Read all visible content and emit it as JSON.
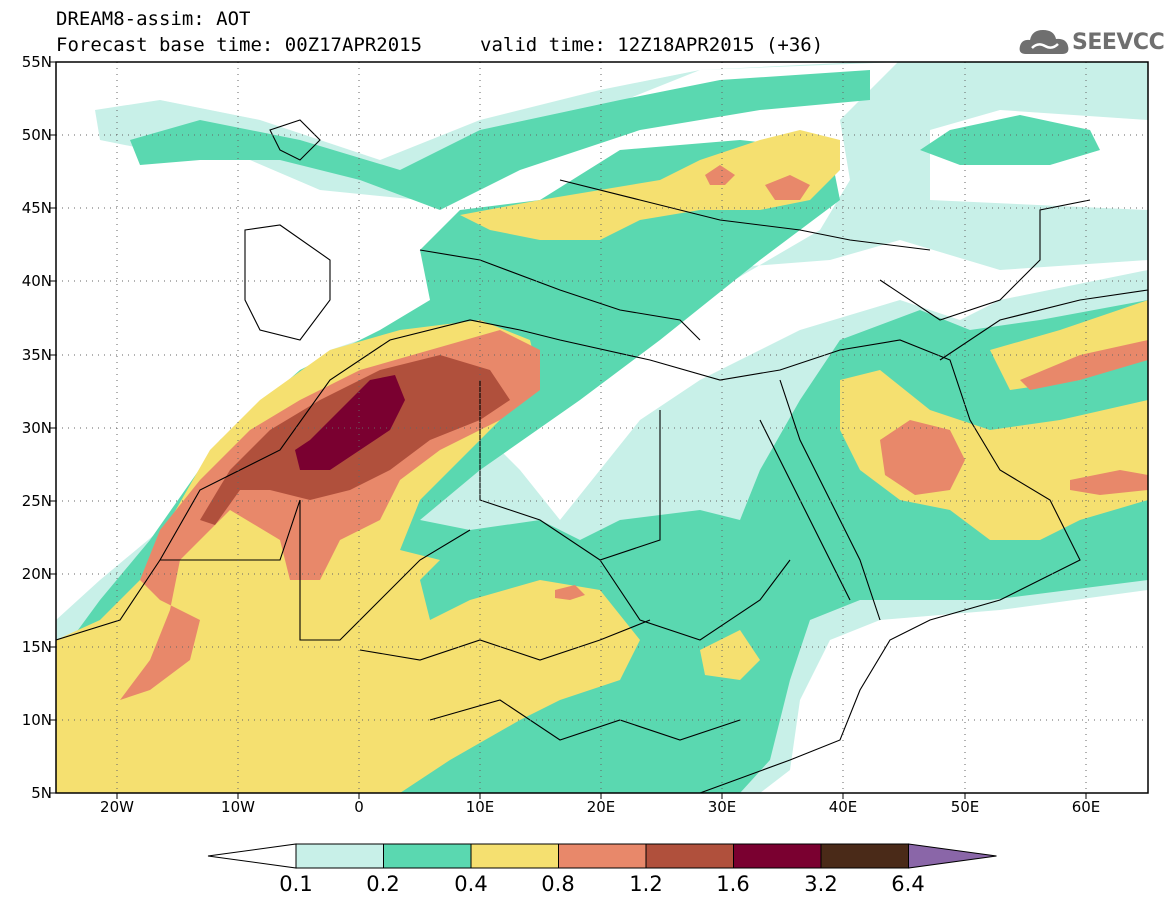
{
  "title": {
    "line1": "DREAM8-assim: AOT",
    "line2": "Forecast base time: 00Z17APR2015",
    "valid": "valid time: 12Z18APR2015 (+36)"
  },
  "logo": {
    "text": "SEEVCCC",
    "icon": "cloud-icon"
  },
  "axes": {
    "lat_labels": [
      "55N",
      "50N",
      "45N",
      "40N",
      "35N",
      "30N",
      "25N",
      "20N",
      "15N",
      "10N",
      "5N"
    ],
    "lon_labels": [
      "20W",
      "10W",
      "0",
      "10E",
      "20E",
      "30E",
      "40E",
      "50E",
      "60E"
    ]
  },
  "colorbar": {
    "labels": [
      "0.1",
      "0.2",
      "0.4",
      "0.8",
      "1.2",
      "1.6",
      "3.2",
      "6.4"
    ],
    "colors": [
      "#ffffff",
      "#c8f0e8",
      "#5ad8b0",
      "#f5e070",
      "#e8886a",
      "#b0503c",
      "#7a0030",
      "#4a2a18",
      "#8a66a8"
    ]
  },
  "map_data": {
    "region": {
      "lon_range": [
        -25,
        65
      ],
      "lat_range": [
        5,
        55
      ]
    },
    "field": "AOT",
    "palette": {
      "c01": "#c8f0e8",
      "c02": "#5ad8b0",
      "c04": "#f5e070",
      "c08": "#e8886a",
      "c12": "#b0503c",
      "c16": "#7a0030"
    }
  }
}
